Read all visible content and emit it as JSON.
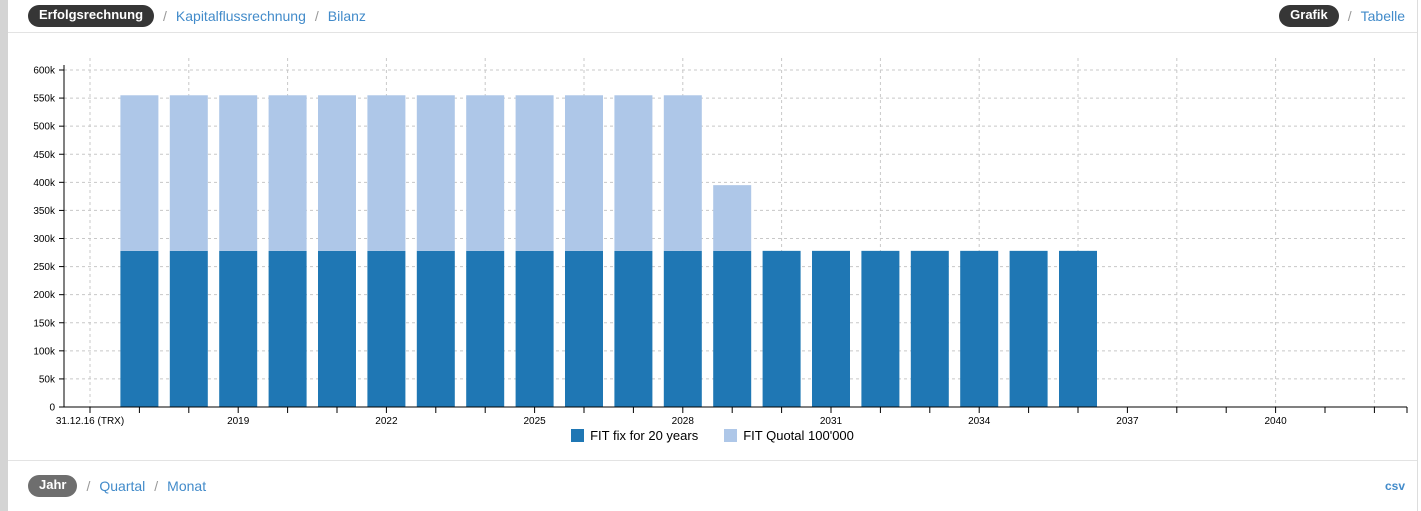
{
  "header": {
    "breadcrumb": {
      "active": "Erfolgsrechnung",
      "separator": "/",
      "links": [
        "Kapitalflussrechnung",
        "Bilanz"
      ]
    },
    "view_toggle": {
      "active": "Grafik",
      "separator": "/",
      "links": [
        "Tabelle"
      ]
    }
  },
  "footer": {
    "period_toggle": {
      "active": "Jahr",
      "separator": "/",
      "links": [
        "Quartal",
        "Monat"
      ]
    },
    "export_link": "csv"
  },
  "colors": {
    "bar_fix": "#1f77b4",
    "bar_quotal": "#aec7e8",
    "link": "#428bca",
    "pill_dark": "#363636",
    "pill_gray": "#6e6e6e",
    "gridline": "#c8c8c8",
    "axis": "#000000"
  },
  "chart_data": {
    "type": "bar",
    "stacked": true,
    "title": "",
    "xlabel": "",
    "ylabel": "",
    "grid": true,
    "legend_position": "bottom-center",
    "ylim": [
      0,
      600000
    ],
    "y_ticks": [
      {
        "value": 0,
        "label": "0"
      },
      {
        "value": 50000,
        "label": "50k"
      },
      {
        "value": 100000,
        "label": "100k"
      },
      {
        "value": 150000,
        "label": "150k"
      },
      {
        "value": 200000,
        "label": "200k"
      },
      {
        "value": 250000,
        "label": "250k"
      },
      {
        "value": 300000,
        "label": "300k"
      },
      {
        "value": 350000,
        "label": "350k"
      },
      {
        "value": 400000,
        "label": "400k"
      },
      {
        "value": 450000,
        "label": "450k"
      },
      {
        "value": 500000,
        "label": "500k"
      },
      {
        "value": 550000,
        "label": "550k"
      },
      {
        "value": 600000,
        "label": "600k"
      }
    ],
    "x_axis": {
      "origin_label": "31.12.16 (TRX)",
      "origin_year": 2016,
      "last_tick_year": 2042,
      "tick_interval_years": 1,
      "gridline_interval_years": 2,
      "labeled_years": [
        2019,
        2022,
        2025,
        2028,
        2031,
        2034,
        2037,
        2040
      ]
    },
    "categories": [
      2017,
      2018,
      2019,
      2020,
      2021,
      2022,
      2023,
      2024,
      2025,
      2026,
      2027,
      2028,
      2029,
      2030,
      2031,
      2032,
      2033,
      2034,
      2035,
      2036
    ],
    "series": [
      {
        "name": "FIT fix for 20 years",
        "color": "#1f77b4",
        "values": [
          278000,
          278000,
          278000,
          278000,
          278000,
          278000,
          278000,
          278000,
          278000,
          278000,
          278000,
          278000,
          278000,
          278000,
          278000,
          278000,
          278000,
          278000,
          278000,
          278000
        ]
      },
      {
        "name": "FIT Quotal 100'000",
        "color": "#aec7e8",
        "values": [
          277000,
          277000,
          277000,
          277000,
          277000,
          277000,
          277000,
          277000,
          277000,
          277000,
          277000,
          277000,
          117000,
          0,
          0,
          0,
          0,
          0,
          0,
          0
        ]
      }
    ]
  }
}
